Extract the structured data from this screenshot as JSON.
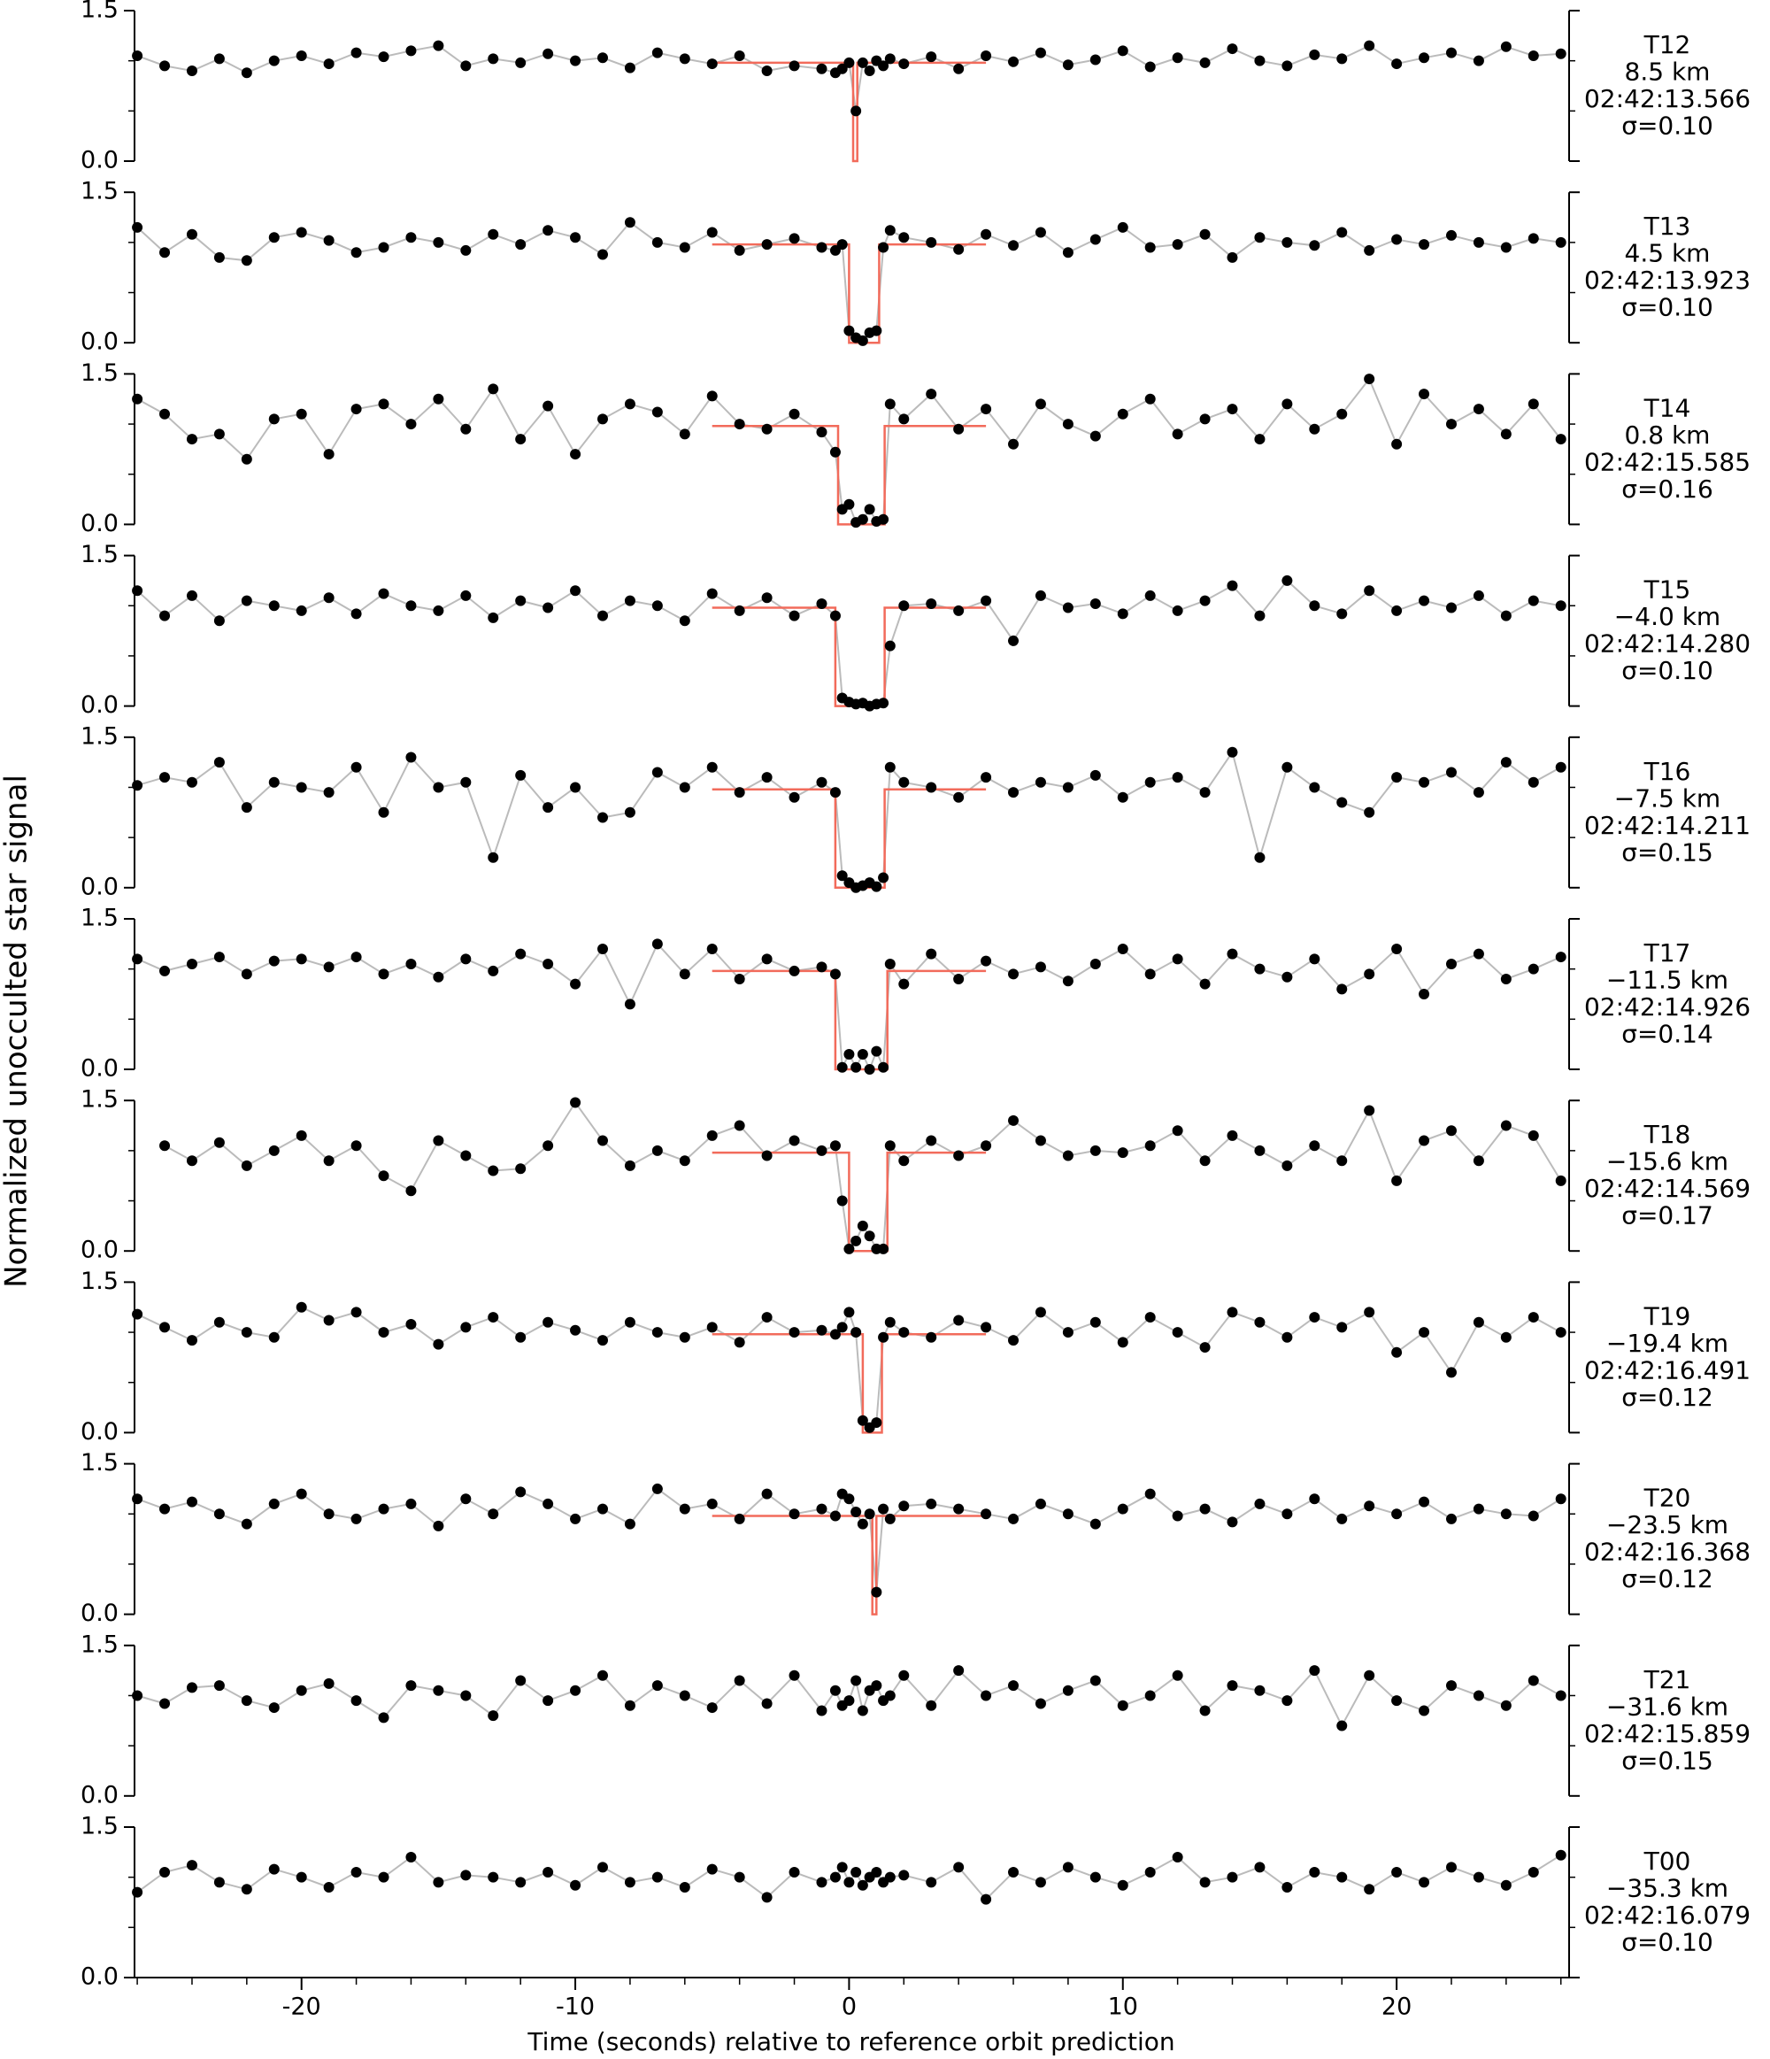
{
  "shared": {
    "ylabel": "Normalized unocculted star signal",
    "xlabel": "Time (seconds) relative to reference orbit prediction",
    "xlim": [
      -26.1,
      26.3
    ],
    "xticks": [
      -20,
      -10,
      0,
      10,
      20
    ],
    "xminorticks": [
      -26,
      -24,
      -22,
      -18,
      -16,
      -14,
      -12,
      -8,
      -6,
      -4,
      -2,
      2,
      4,
      6,
      8,
      12,
      14,
      16,
      18,
      22,
      24,
      26
    ],
    "ylim": [
      0,
      1.5
    ],
    "yticks": [
      {
        "value": 0,
        "label": "0.0"
      },
      1.5
    ],
    "yminorticks": [
      0.5,
      1.0
    ],
    "x": [
      -26,
      -25,
      -24,
      -23,
      -22,
      -21,
      -20,
      -19,
      -18,
      -17,
      -16,
      -15,
      -14,
      -13,
      -12,
      -11,
      -10,
      -9,
      -8,
      -7,
      -6,
      -5,
      -4,
      -3,
      -2,
      -1,
      -0.5,
      -0.25,
      0,
      0.25,
      0.5,
      0.75,
      1,
      1.25,
      1.5,
      2,
      3,
      4,
      5,
      6,
      7,
      8,
      9,
      10,
      11,
      12,
      13,
      14,
      15,
      16,
      17,
      18,
      19,
      20,
      21,
      22,
      23,
      24,
      25,
      26
    ],
    "point_color": "#000000",
    "line_color": "#bbbbbb",
    "model_color": "#f26b5b"
  },
  "chart_data": [
    {
      "type": "line",
      "name": "T12",
      "distance": "8.5 km",
      "time": "02:42:13.566",
      "sigma": "σ=0.10",
      "values": [
        1.05,
        0.95,
        0.9,
        1.02,
        0.88,
        1.0,
        1.05,
        0.97,
        1.08,
        1.04,
        1.1,
        1.15,
        0.95,
        1.02,
        0.98,
        1.07,
        1.0,
        1.03,
        0.93,
        1.08,
        1.02,
        0.97,
        1.05,
        0.9,
        0.95,
        0.92,
        0.88,
        0.92,
        0.98,
        0.5,
        0.98,
        0.9,
        1.0,
        0.95,
        1.02,
        0.97,
        1.04,
        0.92,
        1.05,
        0.99,
        1.08,
        0.96,
        1.01,
        1.1,
        0.94,
        1.03,
        0.98,
        1.12,
        1.0,
        0.95,
        1.06,
        1.02,
        1.15,
        0.97,
        1.03,
        1.08,
        1.0,
        1.14,
        1.05,
        1.07
      ],
      "model": {
        "x": [
          -5,
          0.15,
          0.15,
          0.3,
          0.3,
          5
        ],
        "values": [
          0.98,
          0.98,
          0,
          0,
          0.98,
          0.98
        ]
      }
    },
    {
      "type": "line",
      "name": "T13",
      "distance": "4.5 km",
      "time": "02:42:13.923",
      "sigma": "σ=0.10",
      "values": [
        1.15,
        0.9,
        1.08,
        0.85,
        0.82,
        1.05,
        1.1,
        1.02,
        0.9,
        0.95,
        1.05,
        1.0,
        0.92,
        1.08,
        0.98,
        1.12,
        1.05,
        0.88,
        1.2,
        1.0,
        0.95,
        1.1,
        0.92,
        0.98,
        1.04,
        0.95,
        0.92,
        0.98,
        0.12,
        0.05,
        0.02,
        0.1,
        0.12,
        0.95,
        1.12,
        1.05,
        1.0,
        0.93,
        1.08,
        0.97,
        1.1,
        0.9,
        1.03,
        1.15,
        0.95,
        0.98,
        1.08,
        0.85,
        1.05,
        1.0,
        0.97,
        1.1,
        0.92,
        1.03,
        0.98,
        1.07,
        1.0,
        0.95,
        1.04,
        1.0
      ],
      "model": {
        "x": [
          -5,
          0,
          0,
          1.1,
          1.1,
          5
        ],
        "values": [
          0.98,
          0.98,
          0,
          0,
          0.98,
          0.98
        ]
      }
    },
    {
      "type": "line",
      "name": "T14",
      "distance": "0.8 km",
      "time": "02:42:15.585",
      "sigma": "σ=0.16",
      "values": [
        1.25,
        1.1,
        0.85,
        0.9,
        0.65,
        1.05,
        1.1,
        0.7,
        1.15,
        1.2,
        1.0,
        1.25,
        0.95,
        1.35,
        0.85,
        1.18,
        0.7,
        1.05,
        1.2,
        1.12,
        0.9,
        1.28,
        1.0,
        0.95,
        1.1,
        0.92,
        0.72,
        0.15,
        0.2,
        0.02,
        0.05,
        0.15,
        0.03,
        0.05,
        1.2,
        1.05,
        1.3,
        0.95,
        1.15,
        0.8,
        1.2,
        1.0,
        0.88,
        1.1,
        1.25,
        0.9,
        1.05,
        1.15,
        0.85,
        1.2,
        0.95,
        1.1,
        1.45,
        0.8,
        1.3,
        1.0,
        1.15,
        0.9,
        1.2,
        0.85
      ],
      "model": {
        "x": [
          -5,
          -0.4,
          -0.4,
          1.3,
          1.3,
          5
        ],
        "values": [
          0.98,
          0.98,
          0,
          0,
          0.98,
          0.98
        ]
      }
    },
    {
      "type": "line",
      "name": "T15",
      "distance": "−4.0 km",
      "time": "02:42:14.280",
      "sigma": "σ=0.10",
      "values": [
        1.15,
        0.9,
        1.1,
        0.85,
        1.05,
        1.0,
        0.95,
        1.08,
        0.92,
        1.12,
        1.0,
        0.95,
        1.1,
        0.88,
        1.05,
        0.98,
        1.15,
        0.9,
        1.05,
        1.0,
        0.85,
        1.12,
        0.95,
        1.08,
        0.9,
        1.02,
        0.9,
        0.08,
        0.04,
        0.02,
        0.03,
        0.0,
        0.02,
        0.03,
        0.6,
        1.0,
        1.02,
        0.95,
        1.05,
        0.65,
        1.1,
        0.98,
        1.02,
        0.92,
        1.1,
        0.95,
        1.05,
        1.2,
        0.9,
        1.25,
        1.0,
        0.92,
        1.15,
        0.95,
        1.05,
        0.98,
        1.1,
        0.9,
        1.05,
        1.0
      ],
      "model": {
        "x": [
          -5,
          -0.5,
          -0.5,
          1.3,
          1.3,
          5
        ],
        "values": [
          0.98,
          0.98,
          0,
          0,
          0.98,
          0.98
        ]
      }
    },
    {
      "type": "line",
      "name": "T16",
      "distance": "−7.5 km",
      "time": "02:42:14.211",
      "sigma": "σ=0.15",
      "values": [
        1.02,
        1.1,
        1.05,
        1.25,
        0.8,
        1.05,
        1.0,
        0.95,
        1.2,
        0.75,
        1.3,
        1.0,
        1.05,
        0.3,
        1.12,
        0.8,
        1.0,
        0.7,
        0.75,
        1.15,
        1.0,
        1.2,
        0.95,
        1.1,
        0.9,
        1.05,
        0.95,
        0.12,
        0.05,
        0.0,
        0.02,
        0.05,
        0.01,
        0.1,
        1.2,
        1.05,
        1.0,
        0.9,
        1.1,
        0.95,
        1.05,
        1.0,
        1.12,
        0.9,
        1.05,
        1.1,
        0.95,
        1.35,
        0.3,
        1.2,
        1.0,
        0.85,
        0.75,
        1.1,
        1.05,
        1.15,
        0.95,
        1.25,
        1.05,
        1.2
      ],
      "model": {
        "x": [
          -5,
          -0.5,
          -0.5,
          1.3,
          1.3,
          5
        ],
        "values": [
          0.98,
          0.98,
          0,
          0,
          0.98,
          0.98
        ]
      }
    },
    {
      "type": "line",
      "name": "T17",
      "distance": "−11.5 km",
      "time": "02:42:14.926",
      "sigma": "σ=0.14",
      "values": [
        1.1,
        0.98,
        1.05,
        1.12,
        0.95,
        1.08,
        1.1,
        1.02,
        1.12,
        0.95,
        1.05,
        0.92,
        1.1,
        0.98,
        1.15,
        1.05,
        0.85,
        1.2,
        0.65,
        1.25,
        0.95,
        1.2,
        0.9,
        1.1,
        0.98,
        1.02,
        0.95,
        0.02,
        0.15,
        0.02,
        0.15,
        0.0,
        0.18,
        0.02,
        1.05,
        0.85,
        1.15,
        0.9,
        1.08,
        0.95,
        1.02,
        0.88,
        1.05,
        1.2,
        0.95,
        1.1,
        0.85,
        1.15,
        1.0,
        0.92,
        1.1,
        0.8,
        0.95,
        1.2,
        0.75,
        1.05,
        1.15,
        0.9,
        1.0,
        1.12
      ],
      "model": {
        "x": [
          -5,
          -0.5,
          -0.5,
          1.4,
          1.4,
          5
        ],
        "values": [
          0.98,
          0.98,
          0,
          0,
          0.98,
          0.98
        ]
      }
    },
    {
      "type": "line",
      "name": "T18",
      "distance": "−15.6 km",
      "time": "02:42:14.569",
      "sigma": "σ=0.17",
      "values": [
        null,
        1.05,
        0.9,
        1.08,
        0.85,
        1.0,
        1.15,
        0.9,
        1.05,
        0.75,
        0.6,
        1.1,
        0.95,
        0.8,
        0.82,
        1.05,
        1.48,
        1.1,
        0.85,
        1.0,
        0.9,
        1.15,
        1.25,
        0.95,
        1.1,
        1.0,
        1.05,
        0.5,
        0.02,
        0.1,
        0.25,
        0.15,
        0.02,
        0.02,
        1.05,
        0.9,
        1.1,
        0.95,
        1.05,
        1.3,
        1.1,
        0.95,
        1.0,
        0.98,
        1.05,
        1.2,
        0.9,
        1.15,
        1.0,
        0.85,
        1.05,
        0.9,
        1.4,
        0.7,
        1.1,
        1.2,
        0.9,
        1.25,
        1.15,
        0.7
      ],
      "model": {
        "x": [
          -5,
          0,
          0,
          1.4,
          1.4,
          5
        ],
        "values": [
          0.98,
          0.98,
          0,
          0,
          0.98,
          0.98
        ]
      }
    },
    {
      "type": "line",
      "name": "T19",
      "distance": "−19.4 km",
      "time": "02:42:16.491",
      "sigma": "σ=0.12",
      "values": [
        1.18,
        1.05,
        0.92,
        1.1,
        1.0,
        0.95,
        1.25,
        1.12,
        1.2,
        1.0,
        1.08,
        0.88,
        1.05,
        1.15,
        0.95,
        1.1,
        1.02,
        0.92,
        1.1,
        1.0,
        0.95,
        1.05,
        0.9,
        1.15,
        1.0,
        1.02,
        0.98,
        1.05,
        1.2,
        1.0,
        0.12,
        0.05,
        0.1,
        0.95,
        1.1,
        1.0,
        0.95,
        1.12,
        1.05,
        0.92,
        1.2,
        1.0,
        1.1,
        0.9,
        1.15,
        1.0,
        0.85,
        1.2,
        1.1,
        0.95,
        1.15,
        1.05,
        1.2,
        0.8,
        1.0,
        0.6,
        1.1,
        0.95,
        1.15,
        1.0
      ],
      "model": {
        "x": [
          -5,
          0.5,
          0.5,
          1.2,
          1.2,
          5
        ],
        "values": [
          0.98,
          0.98,
          0,
          0,
          0.98,
          0.98
        ]
      }
    },
    {
      "type": "line",
      "name": "T20",
      "distance": "−23.5 km",
      "time": "02:42:16.368",
      "sigma": "σ=0.12",
      "values": [
        1.15,
        1.05,
        1.12,
        1.0,
        0.9,
        1.1,
        1.2,
        1.0,
        0.95,
        1.05,
        1.1,
        0.88,
        1.15,
        1.0,
        1.22,
        1.1,
        0.95,
        1.05,
        0.9,
        1.25,
        1.05,
        1.1,
        0.95,
        1.2,
        1.0,
        1.05,
        0.98,
        1.2,
        1.15,
        1.02,
        0.9,
        1.0,
        0.22,
        1.05,
        0.95,
        1.08,
        1.1,
        1.05,
        1.0,
        0.95,
        1.1,
        1.0,
        0.9,
        1.05,
        1.2,
        0.98,
        1.05,
        0.92,
        1.1,
        1.0,
        1.15,
        0.95,
        1.08,
        1.0,
        1.12,
        0.95,
        1.05,
        1.0,
        0.98,
        1.15
      ],
      "model": {
        "x": [
          -5,
          0.85,
          0.85,
          1.0,
          1.0,
          5
        ],
        "values": [
          0.98,
          0.98,
          0,
          0,
          0.98,
          0.98
        ]
      }
    },
    {
      "type": "line",
      "name": "T21",
      "distance": "−31.6 km",
      "time": "02:42:15.859",
      "sigma": "σ=0.15",
      "values": [
        1.0,
        0.92,
        1.08,
        1.1,
        0.95,
        0.88,
        1.05,
        1.12,
        0.95,
        0.78,
        1.1,
        1.05,
        1.0,
        0.8,
        1.15,
        0.95,
        1.05,
        1.2,
        0.9,
        1.1,
        1.0,
        0.88,
        1.15,
        0.92,
        1.2,
        0.85,
        1.05,
        0.9,
        0.95,
        1.15,
        0.85,
        1.05,
        1.1,
        0.95,
        1.0,
        1.2,
        0.9,
        1.25,
        1.0,
        1.1,
        0.92,
        1.05,
        1.15,
        0.9,
        1.0,
        1.2,
        0.85,
        1.1,
        1.05,
        0.95,
        1.25,
        0.7,
        1.2,
        0.95,
        0.85,
        1.1,
        1.0,
        0.9,
        1.15,
        1.0
      ]
    },
    {
      "type": "line",
      "name": "T00",
      "distance": "−35.3 km",
      "time": "02:42:16.079",
      "sigma": "σ=0.10",
      "values": [
        0.85,
        1.05,
        1.12,
        0.95,
        0.88,
        1.08,
        1.0,
        0.9,
        1.05,
        1.0,
        1.2,
        0.95,
        1.02,
        1.0,
        0.95,
        1.05,
        0.92,
        1.1,
        0.95,
        1.0,
        0.9,
        1.08,
        1.0,
        0.8,
        1.05,
        0.95,
        1.0,
        1.1,
        0.95,
        1.05,
        0.92,
        1.0,
        1.05,
        0.95,
        1.0,
        1.02,
        0.95,
        1.1,
        0.78,
        1.05,
        0.95,
        1.1,
        1.0,
        0.92,
        1.05,
        1.2,
        0.95,
        1.0,
        1.1,
        0.9,
        1.05,
        1.0,
        0.88,
        1.05,
        0.95,
        1.1,
        1.0,
        0.92,
        1.05,
        1.22
      ]
    }
  ]
}
